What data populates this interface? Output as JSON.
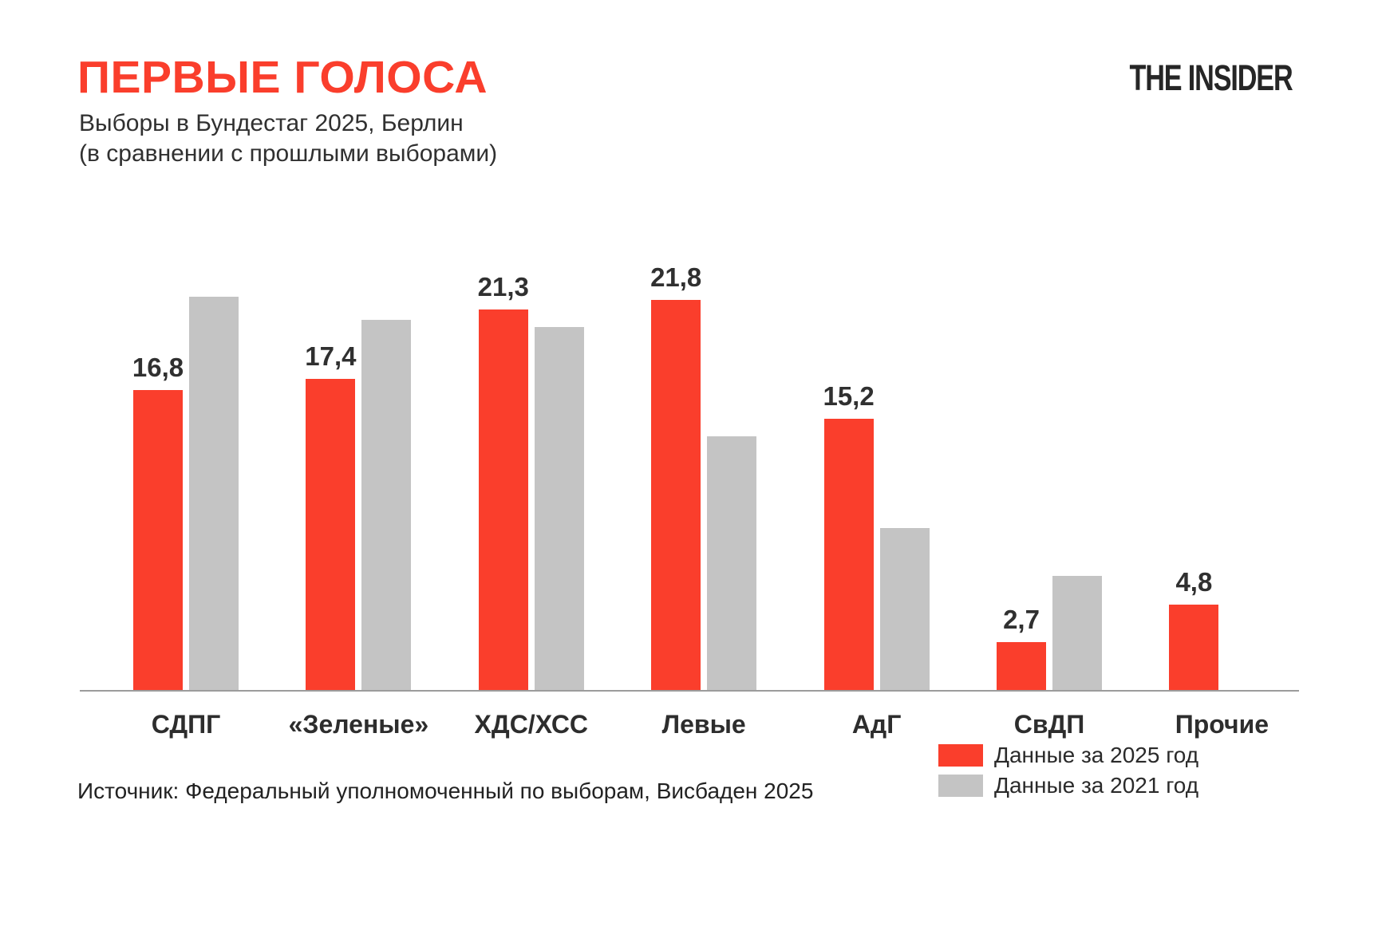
{
  "header": {
    "title": "ПЕРВЫЕ ГОЛОСА",
    "subtitle_line1": "Выборы в Бундестаг 2025, Берлин",
    "subtitle_line2": "(в сравнении с прошлыми выборами)",
    "logo": "THE INSIDER"
  },
  "chart_data": {
    "type": "bar",
    "title": "Первые голоса — Выборы в Бундестаг 2025, Берлин (в сравнении с прошлыми выборами)",
    "categories": [
      "СДПГ",
      "«Зеленые»",
      "ХДС/ХСС",
      "Левые",
      "АдГ",
      "СвДП",
      "Прочие"
    ],
    "series": [
      {
        "name": "Данные за 2025 год",
        "color": "#fa3e2c",
        "values": [
          16.8,
          17.4,
          21.3,
          21.8,
          15.2,
          2.7,
          4.8
        ],
        "value_labels": [
          "16,8",
          "17,4",
          "21,3",
          "21,8",
          "15,2",
          "2,7",
          "4,8"
        ],
        "labels_shown": true
      },
      {
        "name": "Данные за 2021 год",
        "color": "#c4c4c4",
        "values": [
          22.0,
          20.7,
          20.3,
          14.2,
          9.1,
          6.4,
          null
        ],
        "value_labels": [
          "",
          "",
          "",
          "",
          "",
          "",
          ""
        ],
        "labels_shown": false
      }
    ],
    "xlabel": "",
    "ylabel": "",
    "ylim": [
      0,
      24
    ],
    "grid": false,
    "y_axis_shown": false,
    "legend_position": "bottom-right",
    "decimal_separator": ","
  },
  "legend": {
    "items": [
      {
        "label": "Данные за 2025 год",
        "color": "#fa3e2c"
      },
      {
        "label": "Данные за 2021 год",
        "color": "#c4c4c4"
      }
    ]
  },
  "source": "Источник: Федеральный уполномоченный по выборам, Висбаден 2025",
  "colors": {
    "accent_red": "#fa3e2c",
    "bar_gray": "#c4c4c4",
    "text_dark": "#303030",
    "axis_gray": "#9c9c9c"
  }
}
